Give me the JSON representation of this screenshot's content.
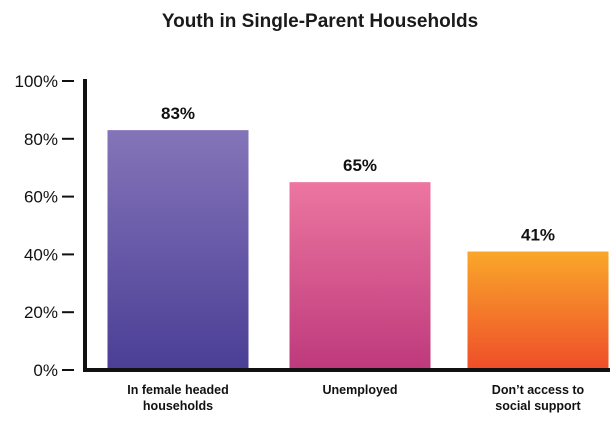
{
  "chart_data": {
    "type": "bar",
    "title": "Youth in Single-Parent Households",
    "categories": [
      [
        "In female headed",
        "households"
      ],
      [
        "Unemployed"
      ],
      [
        "Don’t access to",
        "social support"
      ]
    ],
    "values": [
      83,
      65,
      41
    ],
    "value_labels": [
      "83%",
      "65%",
      "41%"
    ],
    "ylim": [
      0,
      100
    ],
    "yticks": [
      0,
      20,
      40,
      60,
      80,
      100
    ],
    "ytick_labels": [
      "0%",
      "20%",
      "40%",
      "60%",
      "80%",
      "100%"
    ],
    "grid": false,
    "bar_gradients": [
      [
        "#8474b8",
        "#4b3f96"
      ],
      [
        "#ec76a0",
        "#be3a7c"
      ],
      [
        "#f9a72a",
        "#ef4f2a"
      ]
    ]
  }
}
